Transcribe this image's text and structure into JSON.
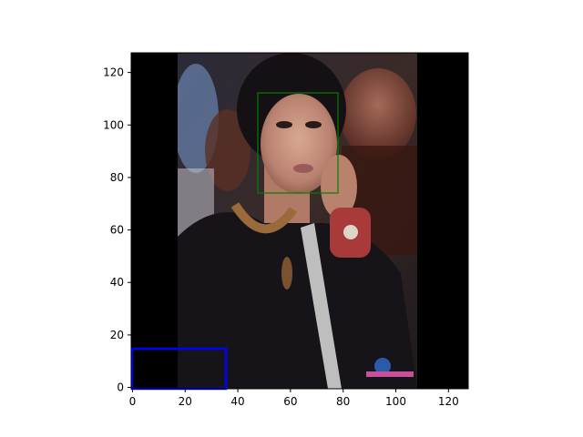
{
  "figure": {
    "background": "#ffffff",
    "axis_color": "#000000"
  },
  "chart_data": {
    "type": "image",
    "x_ticks": [
      0,
      20,
      40,
      60,
      80,
      100,
      120
    ],
    "y_ticks": [
      0,
      20,
      40,
      60,
      80,
      100,
      120
    ],
    "xlim": [
      -0.5,
      127.5
    ],
    "ylim": [
      127.5,
      -0.5
    ],
    "image_size": [
      128,
      128
    ],
    "boxes": [
      {
        "label": "face-box",
        "color": "#008000",
        "x0": 48,
        "y0": 15,
        "x1": 78,
        "y1": 53
      },
      {
        "label": "lower-left-box",
        "color": "#0000ff",
        "x0": 0,
        "y0": 112,
        "x1": 36,
        "y1": 127.5
      }
    ]
  }
}
